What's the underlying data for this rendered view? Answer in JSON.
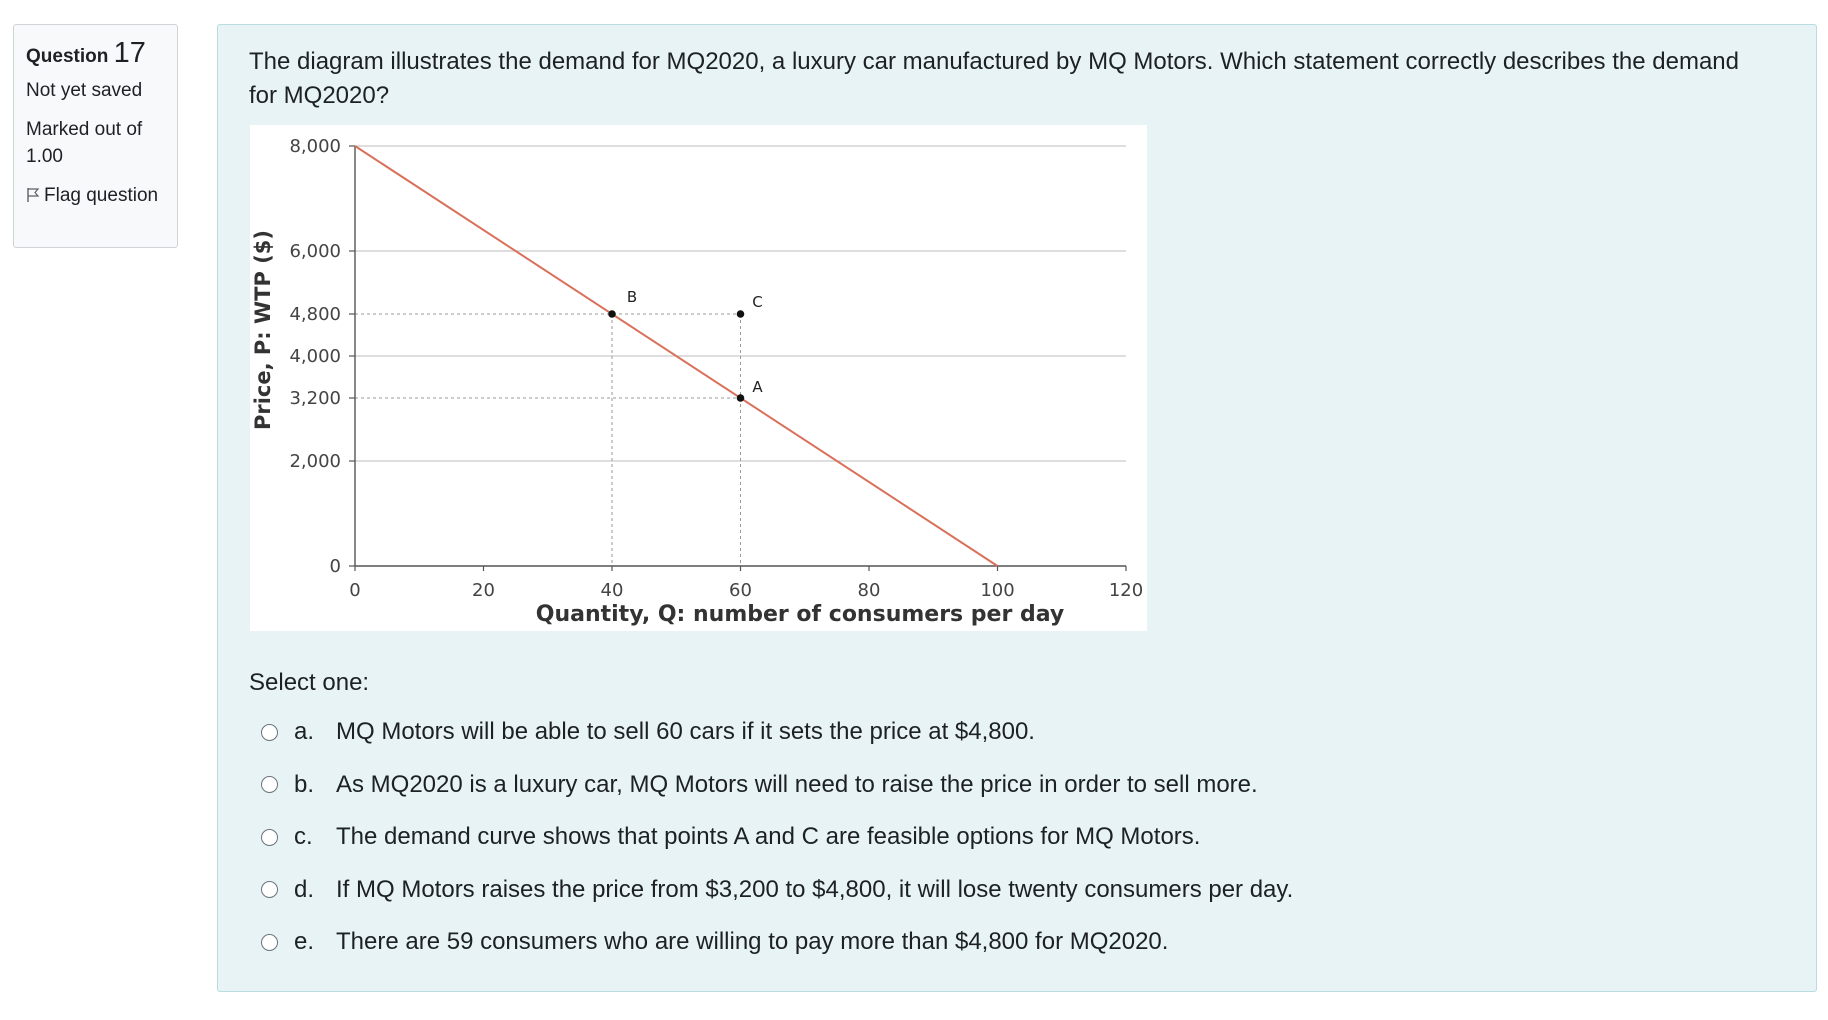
{
  "info": {
    "question_label": "Question",
    "question_number": "17",
    "state": "Not yet saved",
    "grade": "Marked out of 1.00",
    "flag_label": "Flag question"
  },
  "question": {
    "text": "The diagram illustrates the demand for MQ2020, a luxury car manufactured by MQ Motors. Which statement correctly describes the demand for MQ2020?"
  },
  "chart_data": {
    "type": "line",
    "xlabel": "Quantity, Q: number of consumers per day",
    "ylabel": "Price, P: WTP ($)",
    "xlim": [
      0,
      120
    ],
    "ylim": [
      0,
      8000
    ],
    "x_ticks": [
      0,
      20,
      40,
      60,
      80,
      100,
      120
    ],
    "x_tick_labels": [
      "0",
      "20",
      "40",
      "60",
      "80",
      "100",
      "120"
    ],
    "y_gridlines": [
      2000,
      4000,
      6000,
      8000
    ],
    "y_tick_labels": [
      {
        "value": 0,
        "label": "0"
      },
      {
        "value": 2000,
        "label": "2,000"
      },
      {
        "value": 3200,
        "label": "3,200"
      },
      {
        "value": 4000,
        "label": "4,000"
      },
      {
        "value": 4800,
        "label": "4,800"
      },
      {
        "value": 6000,
        "label": "6,000"
      },
      {
        "value": 8000,
        "label": "8,000"
      }
    ],
    "demand_curve": {
      "x": [
        0,
        100
      ],
      "y": [
        8000,
        0
      ],
      "color": "#d9705a"
    },
    "points": [
      {
        "label": "B",
        "x": 40,
        "y": 4800
      },
      {
        "label": "C",
        "x": 60,
        "y": 4800
      },
      {
        "label": "A",
        "x": 60,
        "y": 3200
      }
    ],
    "grid": true
  },
  "select_prompt": "Select one:",
  "answers": [
    {
      "letter": "a.",
      "text": "MQ Motors will be able to sell 60 cars if it sets the price at $4,800."
    },
    {
      "letter": "b.",
      "text": "As MQ2020 is a luxury car, MQ Motors will need to raise the price in order to sell more."
    },
    {
      "letter": "c.",
      "text": "The demand curve shows that points A and C are feasible options for MQ Motors."
    },
    {
      "letter": "d.",
      "text": "If MQ Motors raises the price from $3,200 to $4,800, it will lose twenty consumers per day."
    },
    {
      "letter": "e.",
      "text": "There are 59 consumers who are willing to pay more than $4,800 for MQ2020."
    }
  ]
}
